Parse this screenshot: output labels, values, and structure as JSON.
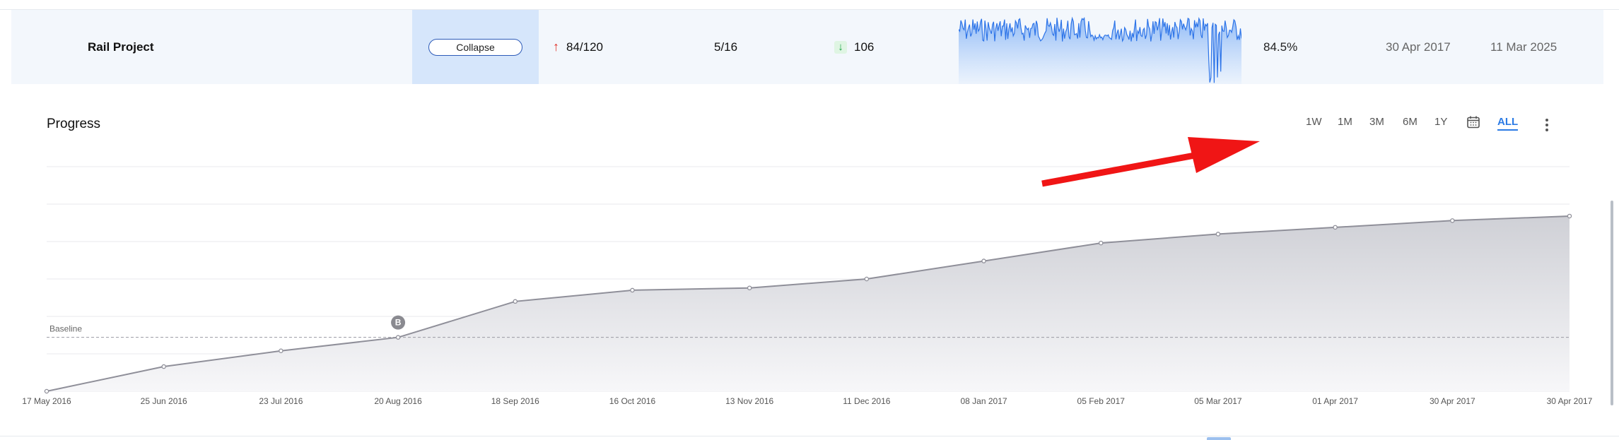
{
  "row": {
    "title": "Rail Project",
    "collapse_label": "Collapse",
    "metric1": "84/120",
    "metric2": "5/16",
    "metric3": "106",
    "percent": "84.5%",
    "date_start": "30 Apr 2017",
    "date_end": "11 Mar 2025",
    "spark_color": "#2d74e8"
  },
  "chart_header": {
    "title": "Progress",
    "ranges": [
      "1W",
      "1M",
      "3M",
      "6M",
      "1Y",
      "ALL"
    ],
    "active_range": "ALL",
    "calendar_icon": "calendar-icon",
    "menu_icon": "more-vert-icon"
  },
  "chart_data": {
    "type": "area",
    "x": [
      "17 May 2016",
      "25 Jun 2016",
      "23 Jul 2016",
      "20 Aug 2016",
      "18 Sep 2016",
      "16 Oct 2016",
      "13 Nov 2016",
      "11 Dec 2016",
      "08 Jan 2017",
      "05 Feb 2017",
      "05 Mar 2017",
      "01 Apr 2017",
      "30 Apr 2017",
      "30 Apr 2017"
    ],
    "values": [
      0,
      11,
      18,
      24,
      40,
      45,
      46,
      50,
      58,
      66,
      70,
      73,
      76,
      78
    ],
    "baseline": {
      "label": "Baseline",
      "value": 24
    },
    "marker": {
      "label": "B",
      "index": 3
    },
    "ylim": [
      0,
      100
    ],
    "grid": true,
    "colors": {
      "line": "#8f8f99",
      "fill_top": "#cfd0d6",
      "fill_bottom": "#f7f7f9"
    }
  },
  "annotation": {
    "type": "arrow",
    "color": "#f01515"
  }
}
